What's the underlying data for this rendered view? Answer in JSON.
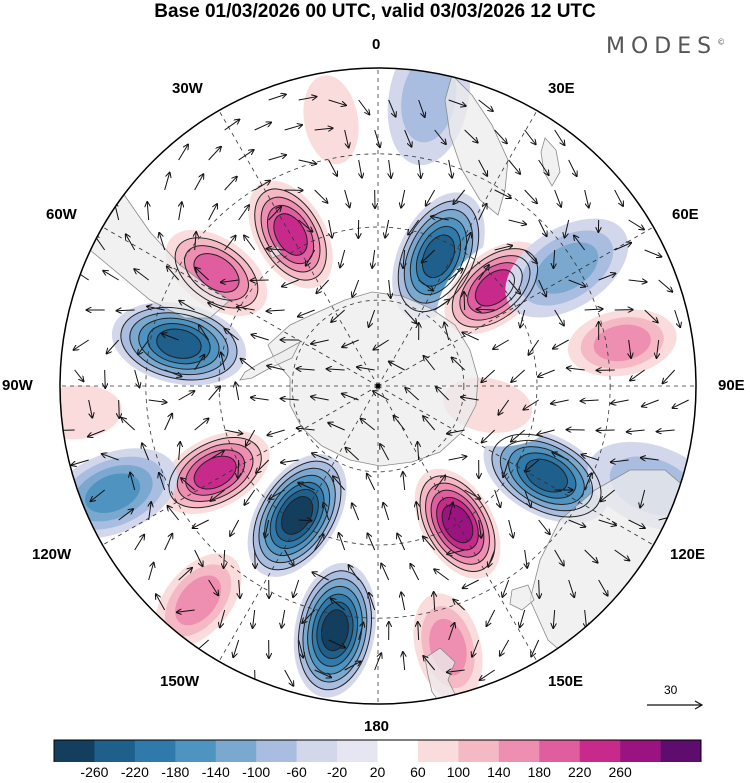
{
  "title": "Base 01/03/2026 00 UTC, valid 03/03/2026 12 UTC",
  "brand": "MODES",
  "brand_mark": "©",
  "projection": "south-polar-stereographic",
  "longitude_labels": {
    "lon_0": "0",
    "lon_30e": "30E",
    "lon_60e": "60E",
    "lon_90e": "90E",
    "lon_120e": "120E",
    "lon_150e": "150E",
    "lon_180": "180",
    "lon_150w": "150W",
    "lon_120w": "120W",
    "lon_90w": "90W",
    "lon_60w": "60W",
    "lon_30w": "30W"
  },
  "reference_vector": {
    "value": "30"
  },
  "colorbar": {
    "labels": [
      "-260",
      "-220",
      "-180",
      "-140",
      "-100",
      "-60",
      "-20",
      "20",
      "60",
      "100",
      "140",
      "180",
      "220",
      "260"
    ],
    "colors": [
      "#143e5e",
      "#1e5f8c",
      "#2f79ab",
      "#4f93c0",
      "#7aa8cf",
      "#a8bde0",
      "#d2d7ec",
      "#e6e6f2",
      "#ffffff",
      "#fbdcdc",
      "#f5b8c5",
      "#ee8eb0",
      "#e05ea0",
      "#c82a8c",
      "#9b1380",
      "#5e0d6e"
    ]
  },
  "colors": {
    "land": "#ececec",
    "coast": "#8a8a8a",
    "grid": "#333333",
    "arrow": "#111111"
  },
  "chart_data": {
    "type": "heatmap",
    "title": "Base 01/03/2026 00 UTC, valid 03/03/2026 12 UTC",
    "variable_contour_levels": [
      -260,
      -220,
      -180,
      -140,
      -100,
      -60,
      -20,
      20,
      60,
      100,
      140,
      180,
      220,
      260
    ],
    "reference_vector_magnitude": 30,
    "anomaly_centres": [
      {
        "lon_deg": -30,
        "colat": 0.55,
        "value": 220
      },
      {
        "lon_deg": -55,
        "colat": 0.62,
        "value": 180
      },
      {
        "lon_deg": 25,
        "colat": 0.45,
        "value": -200
      },
      {
        "lon_deg": 50,
        "colat": 0.48,
        "value": 220
      },
      {
        "lon_deg": 58,
        "colat": 0.7,
        "value": -100
      },
      {
        "lon_deg": 80,
        "colat": 0.78,
        "value": 120
      },
      {
        "lon_deg": -78,
        "colat": 0.64,
        "value": -230
      },
      {
        "lon_deg": -118,
        "colat": 0.58,
        "value": 200
      },
      {
        "lon_deg": -112,
        "colat": 0.9,
        "value": -120
      },
      {
        "lon_deg": -148,
        "colat": 0.48,
        "value": -260
      },
      {
        "lon_deg": -170,
        "colat": 0.78,
        "value": -260
      },
      {
        "lon_deg": 150,
        "colat": 0.5,
        "value": 240
      },
      {
        "lon_deg": 118,
        "colat": 0.6,
        "value": -200
      },
      {
        "lon_deg": -140,
        "colat": 0.88,
        "value": 140
      },
      {
        "lon_deg": 100,
        "colat": 0.35,
        "value": 60
      },
      {
        "lon_deg": 165,
        "colat": 0.85,
        "value": 120
      },
      {
        "lon_deg": -10,
        "colat": 0.85,
        "value": 60
      },
      {
        "lon_deg": 110,
        "colat": 0.92,
        "value": -60
      },
      {
        "lon_deg": -95,
        "colat": 0.95,
        "value": 60
      },
      {
        "lon_deg": 10,
        "colat": 0.92,
        "value": -40
      }
    ]
  }
}
